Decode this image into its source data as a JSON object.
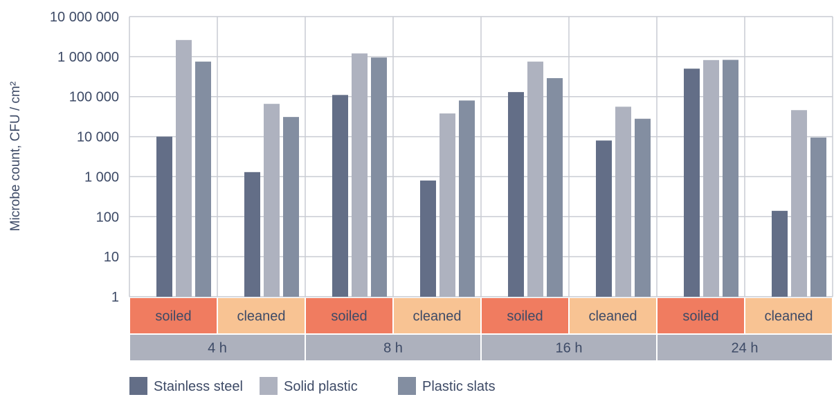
{
  "chart_data": {
    "type": "bar",
    "ylabel": "Microbe count, CFU / cm²",
    "yscale": "log",
    "ylim": [
      1,
      10000000
    ],
    "y_ticks": [
      {
        "value": 10000000,
        "label": "10 000 000"
      },
      {
        "value": 1000000,
        "label": "1 000 000"
      },
      {
        "value": 100000,
        "label": "100 000"
      },
      {
        "value": 10000,
        "label": "10 000"
      },
      {
        "value": 1000,
        "label": "1 000"
      },
      {
        "value": 100,
        "label": "100"
      },
      {
        "value": 10,
        "label": "10"
      },
      {
        "value": 1,
        "label": "1"
      }
    ],
    "categories": [
      "soiled",
      "cleaned",
      "soiled",
      "cleaned",
      "soiled",
      "cleaned",
      "soiled",
      "cleaned"
    ],
    "groups": [
      "4 h",
      "8 h",
      "16 h",
      "24 h"
    ],
    "grid": true,
    "legend_position": "bottom-left",
    "series": [
      {
        "name": "Stainless steel",
        "color": "#636e87",
        "values": [
          10000,
          1300,
          110000,
          800,
          130000,
          8000,
          500000,
          140
        ]
      },
      {
        "name": "Solid plastic",
        "color": "#aeb2bf",
        "values": [
          2600000,
          66000,
          1200000,
          38000,
          750000,
          56000,
          820000,
          46000
        ]
      },
      {
        "name": "Plastic slats",
        "color": "#838ea1",
        "values": [
          750000,
          31000,
          950000,
          80000,
          290000,
          28000,
          830000,
          9500
        ]
      }
    ],
    "category_colors": {
      "soiled": "#f07c60",
      "cleaned": "#f8c393"
    },
    "group_color": "#adb1bd",
    "grid_color": "#c9ccd3"
  }
}
